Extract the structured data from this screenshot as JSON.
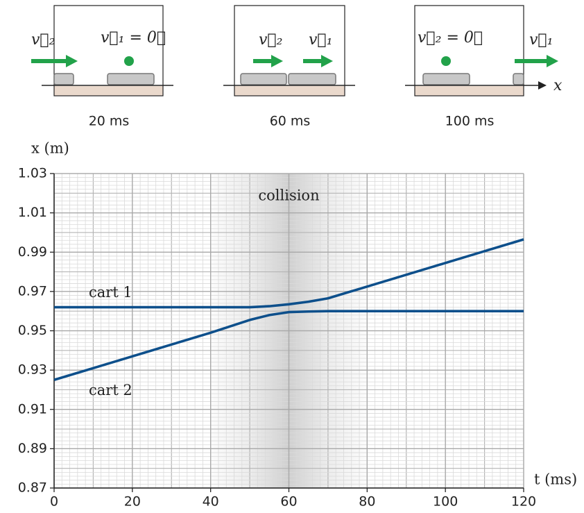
{
  "chart_data": {
    "type": "line",
    "ylabel": "x (m)",
    "xlabel": "t (ms)",
    "x": [
      0,
      10,
      20,
      30,
      40,
      50,
      55,
      60,
      65,
      70,
      80,
      90,
      100,
      110,
      120
    ],
    "series": [
      {
        "name": "cart 1",
        "color": "#0d4f8b",
        "values": [
          0.962,
          0.962,
          0.962,
          0.962,
          0.962,
          0.962,
          0.9625,
          0.9635,
          0.9648,
          0.9665,
          0.9725,
          0.9785,
          0.9845,
          0.9905,
          0.9965
        ]
      },
      {
        "name": "cart 2",
        "color": "#0d4f8b",
        "values": [
          0.925,
          0.931,
          0.937,
          0.943,
          0.949,
          0.9555,
          0.958,
          0.9595,
          0.9598,
          0.96,
          0.96,
          0.96,
          0.96,
          0.96,
          0.96
        ]
      }
    ],
    "xlim": [
      0,
      120
    ],
    "xticks": [
      0,
      20,
      40,
      60,
      80,
      100,
      120
    ],
    "ylim": [
      0.87,
      1.03
    ],
    "yticks": [
      0.87,
      0.89,
      0.91,
      0.93,
      0.95,
      0.97,
      0.99,
      1.01,
      1.03
    ],
    "grid": true,
    "shade": {
      "label": "collision",
      "xrange": [
        40,
        80
      ]
    }
  },
  "frames": [
    {
      "time": "20 ms",
      "labels": [
        "v⃗₂",
        "v⃗₁ = 0⃗"
      ]
    },
    {
      "time": "60 ms",
      "labels": [
        "v⃗₂",
        "v⃗₁"
      ]
    },
    {
      "time": "100 ms",
      "labels": [
        "v⃗₂ = 0⃗",
        "v⃗₁"
      ]
    }
  ],
  "track_axis_label": "x"
}
